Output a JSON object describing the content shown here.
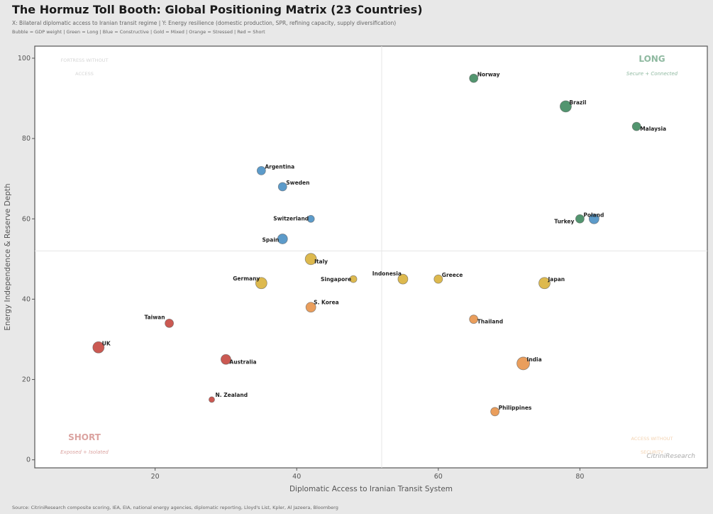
{
  "header": {
    "title": "The Hormuz Toll Booth: Global Positioning Matrix (23 Countries)",
    "subtitle": "X: Bilateral diplomatic access to Iranian transit regime  |  Y: Energy resilience (domestic production, SPR, refining capacity, supply diversification)",
    "legend_line": "Bubble = GDP weight  |  Green = Long  |  Blue = Constructive  |  Gold = Mixed  |  Orange = Stressed  |  Red = Short"
  },
  "footer": {
    "source": "Source: CitriniResearch composite scoring, IEA, EIA, national energy agencies, diplomatic reporting, Lloyd's List, Kpler, Al Jazeera, Bloomberg",
    "watermark": "CitriniResearch"
  },
  "chart_data": {
    "type": "scatter",
    "title": "The Hormuz Toll Booth: Global Positioning Matrix (23 Countries)",
    "xlabel": "Diplomatic Access to Iranian Transit System",
    "ylabel": "Energy Independence & Reserve Depth",
    "xlim": [
      3,
      98
    ],
    "ylim": [
      -2,
      103
    ],
    "xticks": [
      20,
      40,
      60,
      80
    ],
    "yticks": [
      0,
      20,
      40,
      60,
      80,
      100
    ],
    "divider_x": 52,
    "divider_y": 52,
    "grid": false,
    "colors": {
      "green": "#3f8a5f",
      "blue": "#4a90c4",
      "gold": "#d9b13b",
      "orange": "#e8944a",
      "red": "#c5473f"
    },
    "quadrants": {
      "top_right": {
        "title": "LONG",
        "subtitle": "Secure + Connected",
        "color": "#8fb9a0"
      },
      "top_left": {
        "title_line1": "FORTRESS WITHOUT",
        "title_line2": "ACCESS",
        "color": "#d5d5d5"
      },
      "bottom_left": {
        "title": "SHORT",
        "subtitle": "Exposed + Isolated",
        "color": "#dba3a0"
      },
      "bottom_right": {
        "title_line1": "ACCESS WITHOUT",
        "title_line2": "SECURITY",
        "color": "#f3d2b0"
      }
    },
    "points": [
      {
        "name": "Norway",
        "x": 65,
        "y": 95,
        "color": "green",
        "size": 6
      },
      {
        "name": "Brazil",
        "x": 78,
        "y": 88,
        "color": "green",
        "size": 8
      },
      {
        "name": "Malaysia",
        "x": 88,
        "y": 83,
        "color": "green",
        "size": 6
      },
      {
        "name": "Argentina",
        "x": 35,
        "y": 72,
        "color": "blue",
        "size": 6
      },
      {
        "name": "Sweden",
        "x": 38,
        "y": 68,
        "color": "blue",
        "size": 6
      },
      {
        "name": "Switzerland",
        "x": 42,
        "y": 60,
        "color": "blue",
        "size": 5
      },
      {
        "name": "Spain",
        "x": 38,
        "y": 55,
        "color": "blue",
        "size": 7
      },
      {
        "name": "Turkey",
        "x": 80,
        "y": 60,
        "color": "green",
        "size": 6
      },
      {
        "name": "Poland",
        "x": 82,
        "y": 60,
        "color": "blue",
        "size": 7
      },
      {
        "name": "Italy",
        "x": 42,
        "y": 50,
        "color": "gold",
        "size": 8
      },
      {
        "name": "Germany",
        "x": 35,
        "y": 44,
        "color": "gold",
        "size": 8
      },
      {
        "name": "Singapore",
        "x": 48,
        "y": 45,
        "color": "gold",
        "size": 5
      },
      {
        "name": "Indonesia",
        "x": 55,
        "y": 45,
        "color": "gold",
        "size": 7
      },
      {
        "name": "Greece",
        "x": 60,
        "y": 45,
        "color": "gold",
        "size": 6
      },
      {
        "name": "Japan",
        "x": 75,
        "y": 44,
        "color": "gold",
        "size": 8
      },
      {
        "name": "S. Korea",
        "x": 42,
        "y": 38,
        "color": "orange",
        "size": 7
      },
      {
        "name": "Thailand",
        "x": 65,
        "y": 35,
        "color": "orange",
        "size": 6
      },
      {
        "name": "Taiwan",
        "x": 22,
        "y": 34,
        "color": "red",
        "size": 6
      },
      {
        "name": "UK",
        "x": 12,
        "y": 28,
        "color": "red",
        "size": 8
      },
      {
        "name": "Australia",
        "x": 30,
        "y": 25,
        "color": "red",
        "size": 7
      },
      {
        "name": "India",
        "x": 72,
        "y": 24,
        "color": "orange",
        "size": 9
      },
      {
        "name": "N. Zealand",
        "x": 28,
        "y": 15,
        "color": "red",
        "size": 4
      },
      {
        "name": "Philippines",
        "x": 68,
        "y": 12,
        "color": "orange",
        "size": 6
      }
    ]
  }
}
